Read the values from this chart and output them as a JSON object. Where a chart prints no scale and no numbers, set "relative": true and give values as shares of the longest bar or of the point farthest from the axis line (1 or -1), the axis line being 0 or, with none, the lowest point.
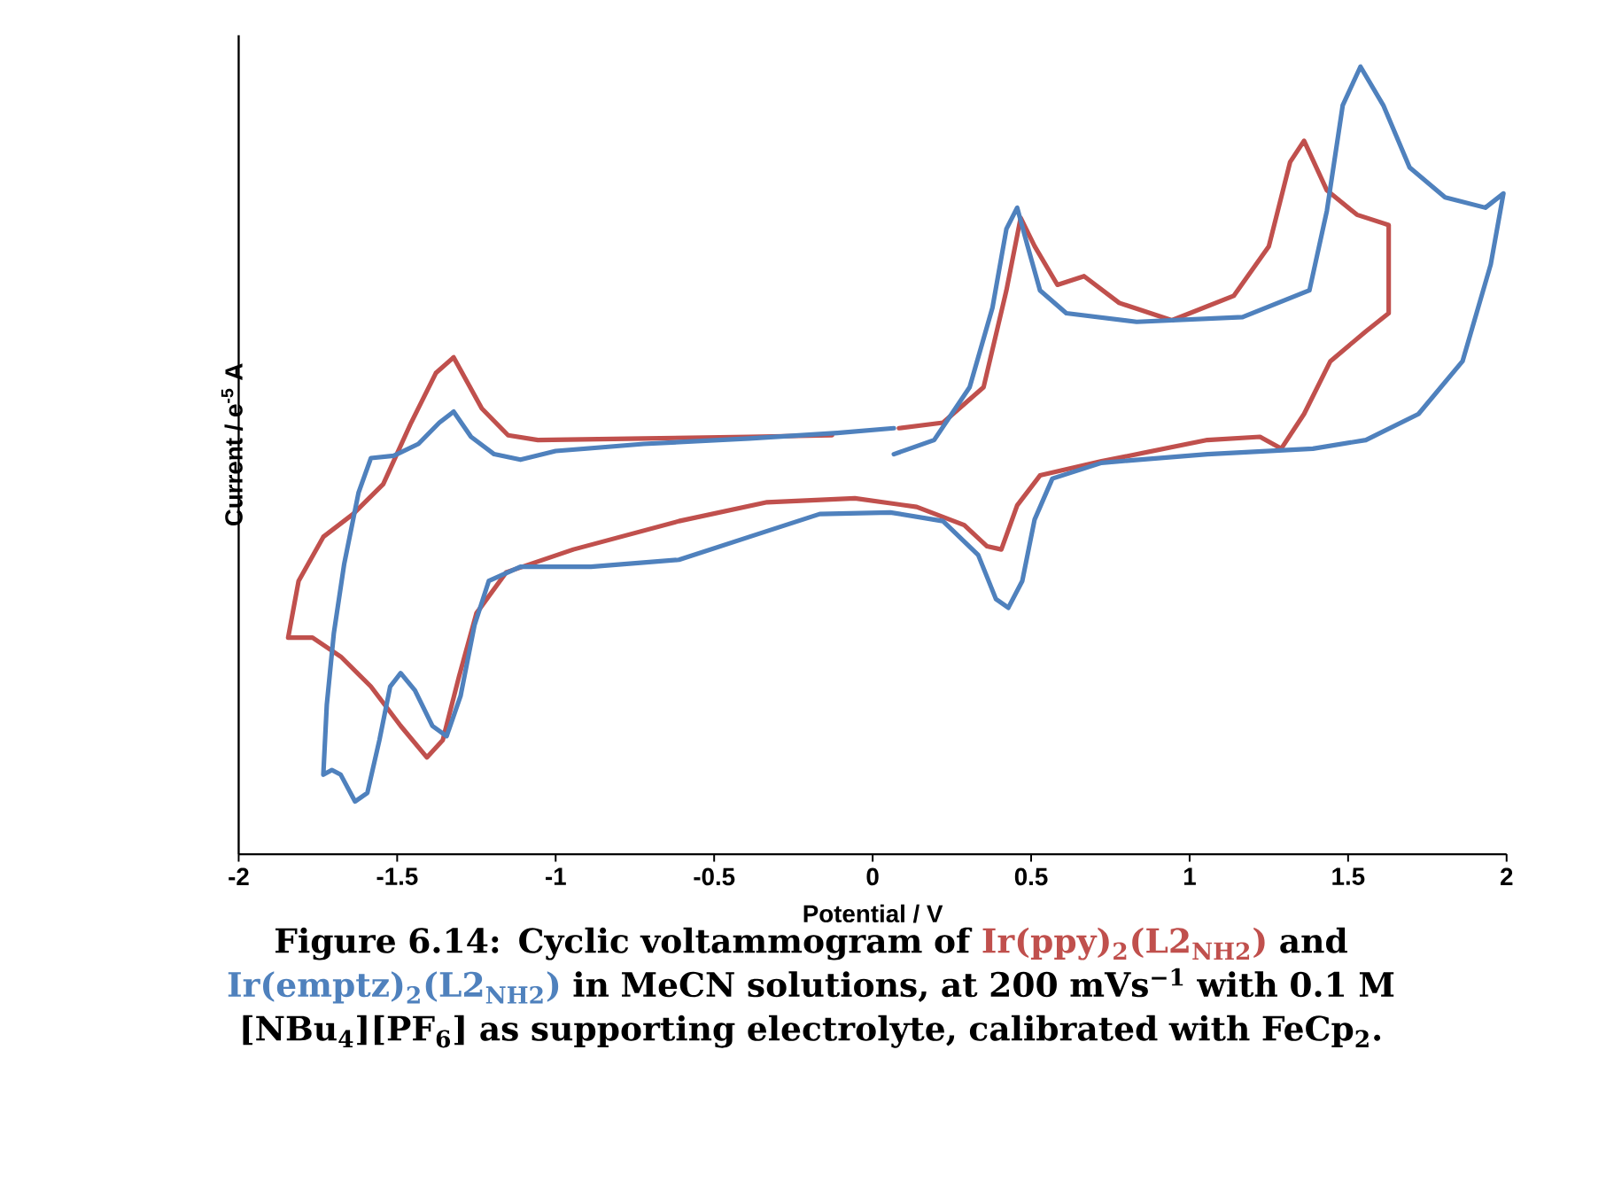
{
  "chart_data": {
    "type": "line",
    "relative": true,
    "xlabel": "Potential / V",
    "ylabel": "Current / e$^{-5}$ A",
    "annotations": [
      "Figure 6.14: Cyclic voltammogram of",
      "and",
      "in MeCN solutions, at 200 mVs$^{−1}$ with 0.1 M [NBu$_{4}$][PF$_{6}$] as supporting electrolyte, calibrated with FeCp$_{2}$."
    ],
    "xlim": [
      -2,
      2
    ],
    "xticks": [
      -2,
      -1.5,
      -1,
      -0.5,
      0,
      0.5,
      1,
      1.5,
      2
    ],
    "line_style": "solid",
    "series": [
      {
        "name": "Ir(ppy)$_{2}$(L2$_{NH2}$)",
        "color": "#c0504d",
        "x": [
          -0.128,
          -0.389,
          -0.722,
          -1.056,
          -1.15,
          -1.233,
          -1.322,
          -1.378,
          -1.456,
          -1.544,
          -1.639,
          -1.733,
          -1.811,
          -1.844,
          -1.767,
          -1.678,
          -1.583,
          -1.489,
          -1.406,
          -1.356,
          -1.306,
          -1.25,
          -1.156,
          -0.944,
          -0.611,
          -0.333,
          -0.056,
          0.139,
          0.289,
          0.361,
          0.406,
          0.456,
          0.528,
          0.722,
          1.056,
          1.222,
          1.289,
          1.361,
          1.444,
          1.556,
          1.628,
          1.628,
          1.528,
          1.433,
          1.361,
          1.317,
          1.25,
          1.139,
          0.944,
          0.778,
          0.667,
          0.583,
          0.511,
          0.467,
          0.422,
          0.35,
          0.222,
          0.083
        ],
        "values": [
          0.532,
          0.53,
          0.528,
          0.526,
          0.532,
          0.566,
          0.631,
          0.611,
          0.548,
          0.47,
          0.432,
          0.403,
          0.347,
          0.275,
          0.275,
          0.251,
          0.213,
          0.163,
          0.123,
          0.145,
          0.224,
          0.306,
          0.358,
          0.387,
          0.423,
          0.447,
          0.452,
          0.441,
          0.418,
          0.391,
          0.387,
          0.443,
          0.481,
          0.499,
          0.526,
          0.53,
          0.515,
          0.559,
          0.626,
          0.664,
          0.687,
          0.799,
          0.812,
          0.843,
          0.906,
          0.879,
          0.772,
          0.709,
          0.678,
          0.7,
          0.734,
          0.723,
          0.772,
          0.808,
          0.716,
          0.593,
          0.548,
          0.541
        ]
      },
      {
        "name": "Ir(emptz)$_{2}$(L2$_{NH2}$)",
        "color": "#4f81bd",
        "x": [
          0.067,
          -0.111,
          -0.389,
          -0.722,
          -1.0,
          -1.111,
          -1.194,
          -1.267,
          -1.322,
          -1.367,
          -1.433,
          -1.511,
          -1.583,
          -1.622,
          -1.667,
          -1.7,
          -1.722,
          -1.733,
          -1.706,
          -1.678,
          -1.633,
          -1.594,
          -1.556,
          -1.522,
          -1.489,
          -1.444,
          -1.389,
          -1.344,
          -1.3,
          -1.256,
          -1.211,
          -1.111,
          -0.889,
          -0.611,
          -0.389,
          -0.167,
          0.056,
          0.222,
          0.333,
          0.389,
          0.428,
          0.472,
          0.511,
          0.567,
          0.722,
          1.056,
          1.389,
          1.556,
          1.722,
          1.861,
          1.95,
          1.99,
          1.933,
          1.806,
          1.694,
          1.611,
          1.539,
          1.483,
          1.433,
          1.378,
          1.167,
          0.833,
          0.611,
          0.528,
          0.489,
          0.456,
          0.422,
          0.378,
          0.306,
          0.194,
          0.067
        ],
        "values": [
          0.541,
          0.535,
          0.528,
          0.521,
          0.512,
          0.501,
          0.508,
          0.53,
          0.562,
          0.548,
          0.521,
          0.506,
          0.503,
          0.459,
          0.369,
          0.28,
          0.19,
          0.101,
          0.107,
          0.101,
          0.067,
          0.078,
          0.145,
          0.213,
          0.23,
          0.208,
          0.163,
          0.15,
          0.201,
          0.291,
          0.347,
          0.365,
          0.365,
          0.374,
          0.403,
          0.432,
          0.434,
          0.423,
          0.38,
          0.324,
          0.313,
          0.347,
          0.425,
          0.477,
          0.497,
          0.508,
          0.515,
          0.526,
          0.559,
          0.626,
          0.749,
          0.839,
          0.821,
          0.834,
          0.872,
          0.951,
          1.0,
          0.951,
          0.817,
          0.716,
          0.682,
          0.676,
          0.687,
          0.716,
          0.772,
          0.821,
          0.794,
          0.694,
          0.593,
          0.526,
          0.508
        ]
      }
    ]
  }
}
